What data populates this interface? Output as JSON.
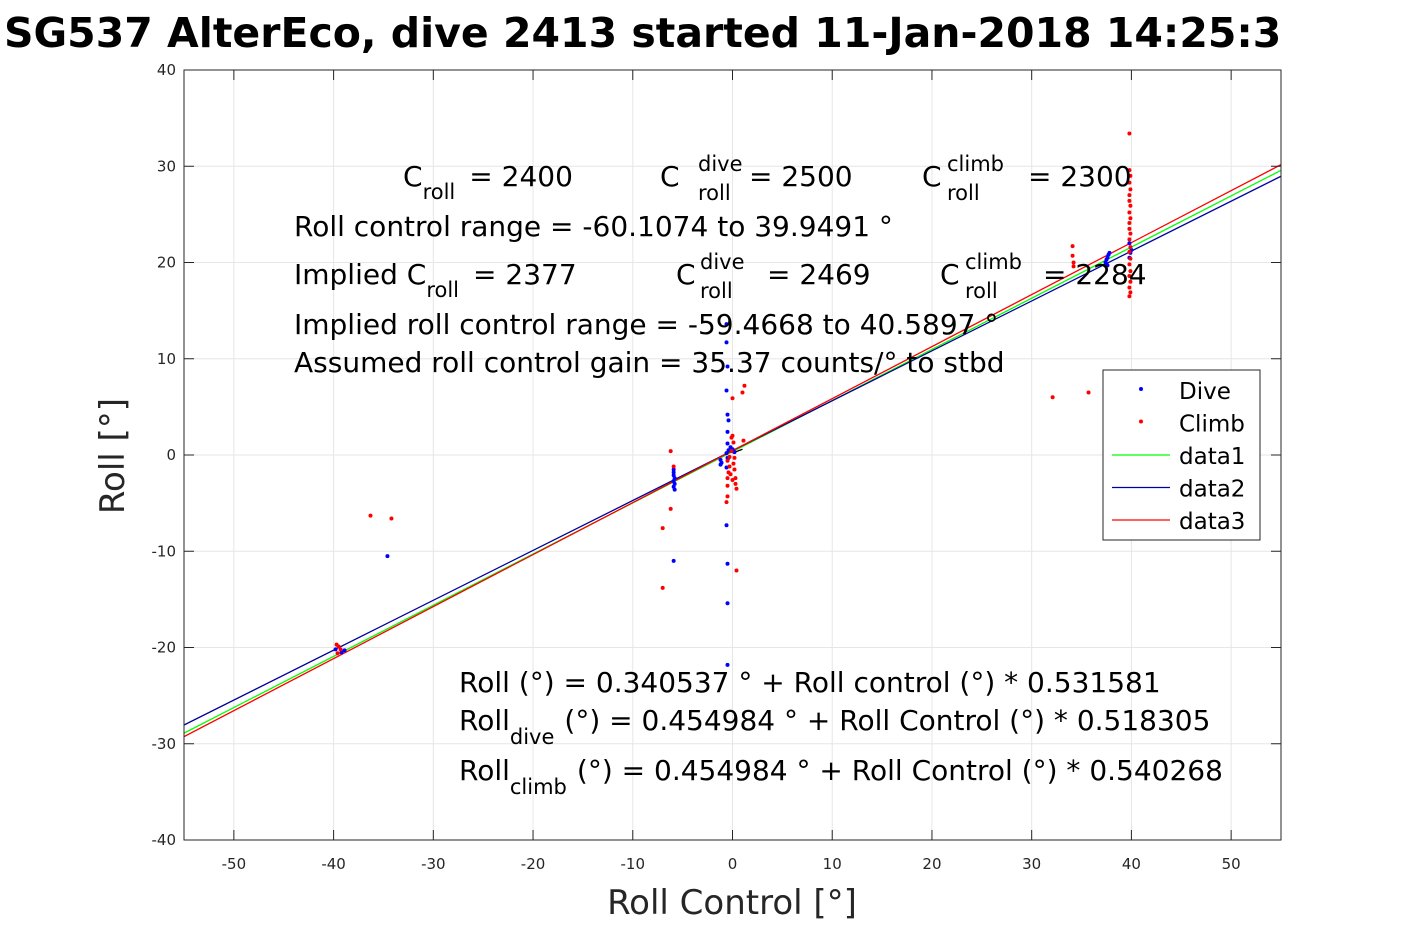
{
  "chart_data": {
    "type": "scatter",
    "title": "SG537 AlterEco, dive 2413 started 11-Jan-2018 14:25:3",
    "xlabel": "Roll Control [°]",
    "ylabel": "Roll [°]",
    "xlim": [
      -55,
      55
    ],
    "ylim": [
      -40,
      40
    ],
    "grid": true,
    "xticks": [
      -50,
      -40,
      -30,
      -20,
      -10,
      0,
      10,
      20,
      30,
      40,
      50
    ],
    "yticks": [
      -40,
      -30,
      -20,
      -10,
      0,
      10,
      20,
      30,
      40
    ],
    "xtick_labels": [
      "-50",
      "-40",
      "-30",
      "-20",
      "-10",
      "0",
      "10",
      "20",
      "30",
      "40",
      "50"
    ],
    "ytick_labels": [
      "-40",
      "-30",
      "-20",
      "-10",
      "0",
      "10",
      "20",
      "30",
      "40"
    ],
    "legend_position": "right",
    "series": [
      {
        "name": "Dive",
        "style": "dots",
        "color": "#0000ff",
        "points": [
          [
            -39.8,
            -20.2
          ],
          [
            -39.2,
            -20.5
          ],
          [
            -38.9,
            -20.3
          ],
          [
            -34.6,
            -10.5
          ],
          [
            -5.9,
            -1.5
          ],
          [
            -5.9,
            -1.8
          ],
          [
            -5.9,
            -2.1
          ],
          [
            -5.8,
            -2.4
          ],
          [
            -5.9,
            -2.7
          ],
          [
            -5.8,
            -3.0
          ],
          [
            -5.9,
            -3.3
          ],
          [
            -5.8,
            -3.6
          ],
          [
            -5.9,
            -11.0
          ],
          [
            -1.2,
            -0.5
          ],
          [
            -1.1,
            -0.8
          ],
          [
            -1.2,
            -1.0
          ],
          [
            -0.6,
            0.2
          ],
          [
            -0.5,
            -0.3
          ],
          [
            -0.4,
            0.5
          ],
          [
            -0.6,
            13.6
          ],
          [
            -0.6,
            11.7
          ],
          [
            -0.5,
            9.2
          ],
          [
            -0.6,
            6.7
          ],
          [
            -0.5,
            4.2
          ],
          [
            -0.4,
            3.6
          ],
          [
            -0.5,
            2.4
          ],
          [
            -0.5,
            1.2
          ],
          [
            -0.4,
            -0.3
          ],
          [
            -0.6,
            -1.3
          ],
          [
            -0.6,
            -7.3
          ],
          [
            -0.5,
            -11.3
          ],
          [
            -0.5,
            -15.4
          ],
          [
            -0.5,
            -21.8
          ],
          [
            -0.2,
            0.8
          ],
          [
            0,
            0.6
          ],
          [
            0.2,
            0.3
          ],
          [
            37.4,
            20.0
          ],
          [
            37.5,
            20.3
          ],
          [
            37.6,
            20.5
          ],
          [
            37.7,
            20.8
          ],
          [
            37.8,
            21.0
          ],
          [
            37.6,
            19.7
          ],
          [
            39.8,
            20.5
          ],
          [
            39.9,
            21.0
          ],
          [
            40.0,
            21.3
          ],
          [
            39.8,
            22.0
          ]
        ]
      },
      {
        "name": "Climb",
        "style": "dots",
        "color": "#ff0000",
        "points": [
          [
            -39.7,
            -19.7
          ],
          [
            -39.5,
            -19.9
          ],
          [
            -39.3,
            -20.2
          ],
          [
            -39.6,
            -20.6
          ],
          [
            -36.3,
            -6.3
          ],
          [
            -34.2,
            -6.6
          ],
          [
            -7.0,
            -7.6
          ],
          [
            -7.0,
            -13.8
          ],
          [
            -6.2,
            0.4
          ],
          [
            -6.2,
            -5.6
          ],
          [
            -5.9,
            -1.2
          ],
          [
            -0.5,
            -4.3
          ],
          [
            -0.6,
            -4.9
          ],
          [
            -0.5,
            -3.2
          ],
          [
            -0.5,
            -2.4
          ],
          [
            -0.4,
            -1.8
          ],
          [
            -0.3,
            -1.2
          ],
          [
            -0.5,
            -0.6
          ],
          [
            -0.3,
            -0.2
          ],
          [
            -0.1,
            0.4
          ],
          [
            -0.1,
            1.8
          ],
          [
            0,
            2.0
          ],
          [
            0.1,
            1.3
          ],
          [
            0.2,
            -0.3
          ],
          [
            0.1,
            -0.9
          ],
          [
            0.2,
            -1.5
          ],
          [
            0.3,
            -2.4
          ],
          [
            0.3,
            -3.0
          ],
          [
            0.4,
            -3.5
          ],
          [
            -0.2,
            -2.0
          ],
          [
            0,
            -2.6
          ],
          [
            0,
            5.9
          ],
          [
            0.4,
            -12.0
          ],
          [
            1.0,
            6.5
          ],
          [
            1.2,
            7.2
          ],
          [
            1.1,
            1.5
          ],
          [
            32.1,
            6.0
          ],
          [
            35.7,
            6.5
          ],
          [
            34.1,
            21.7
          ],
          [
            34.1,
            20.7
          ],
          [
            34.2,
            20.0
          ],
          [
            34.2,
            19.6
          ],
          [
            39.8,
            33.4
          ],
          [
            39.8,
            29.6
          ],
          [
            39.9,
            29.0
          ],
          [
            39.8,
            28.3
          ],
          [
            39.9,
            27.6
          ],
          [
            39.8,
            27.0
          ],
          [
            39.8,
            26.4
          ],
          [
            39.9,
            25.9
          ],
          [
            39.8,
            25.2
          ],
          [
            39.9,
            24.6
          ],
          [
            39.8,
            24.1
          ],
          [
            39.8,
            23.5
          ],
          [
            39.9,
            23.0
          ],
          [
            39.8,
            22.4
          ],
          [
            39.9,
            21.6
          ],
          [
            39.8,
            21.1
          ],
          [
            39.9,
            20.4
          ],
          [
            39.8,
            19.8
          ],
          [
            39.9,
            19.1
          ],
          [
            39.8,
            18.6
          ],
          [
            39.9,
            18.0
          ],
          [
            39.8,
            17.4
          ],
          [
            39.9,
            16.9
          ],
          [
            39.8,
            16.5
          ]
        ]
      },
      {
        "name": "data1",
        "style": "line",
        "color": "#00ff00",
        "intercept": 0.340537,
        "slope": 0.531581
      },
      {
        "name": "data2",
        "style": "line",
        "color": "#0000a0",
        "intercept": 0.454984,
        "slope": 0.518305
      },
      {
        "name": "data3",
        "style": "line",
        "color": "#ff0000",
        "intercept": 0.454984,
        "slope": 0.540268
      }
    ],
    "short_segment": {
      "color": "#000000",
      "x": [
        0,
        1
      ],
      "y": [
        0.2,
        0.6
      ]
    },
    "annotations": {
      "c_roll": {
        "base": "C",
        "sub": "roll",
        "value": "= 2400"
      },
      "c_roll_dive": {
        "base": "C",
        "sup": "dive",
        "sub": "roll",
        "value": "= 2500"
      },
      "c_roll_climb": {
        "base": "C",
        "sup": "climb",
        "sub": "roll",
        "value": "= 2300"
      },
      "range_line": "Roll control range = -60.1074 to 39.9491 °",
      "implied_c_roll": {
        "prefix": "Implied C",
        "sub": "roll",
        "value": "= 2377"
      },
      "implied_c_dive": {
        "base": "C",
        "sup": "dive",
        "sub": "roll",
        "value": "= 2469"
      },
      "implied_c_climb": {
        "base": "C",
        "sup": "climb",
        "sub": "roll",
        "value": "= 2284"
      },
      "implied_range_line": "Implied roll control range = -59.4668 to 40.5897 °",
      "gain_line": "Assumed roll control gain = 35.37 counts/° to stbd",
      "fit_all": "Roll (°) = 0.340537 ° + Roll control (°) * 0.531581",
      "fit_dive": {
        "base": "Roll",
        "sub": "dive",
        "rest": "(°) = 0.454984 ° + Roll Control (°) * 0.518305"
      },
      "fit_climb": {
        "base": "Roll",
        "sub": "climb",
        "rest": "(°) = 0.454984 ° + Roll Control (°) * 0.540268"
      }
    }
  }
}
